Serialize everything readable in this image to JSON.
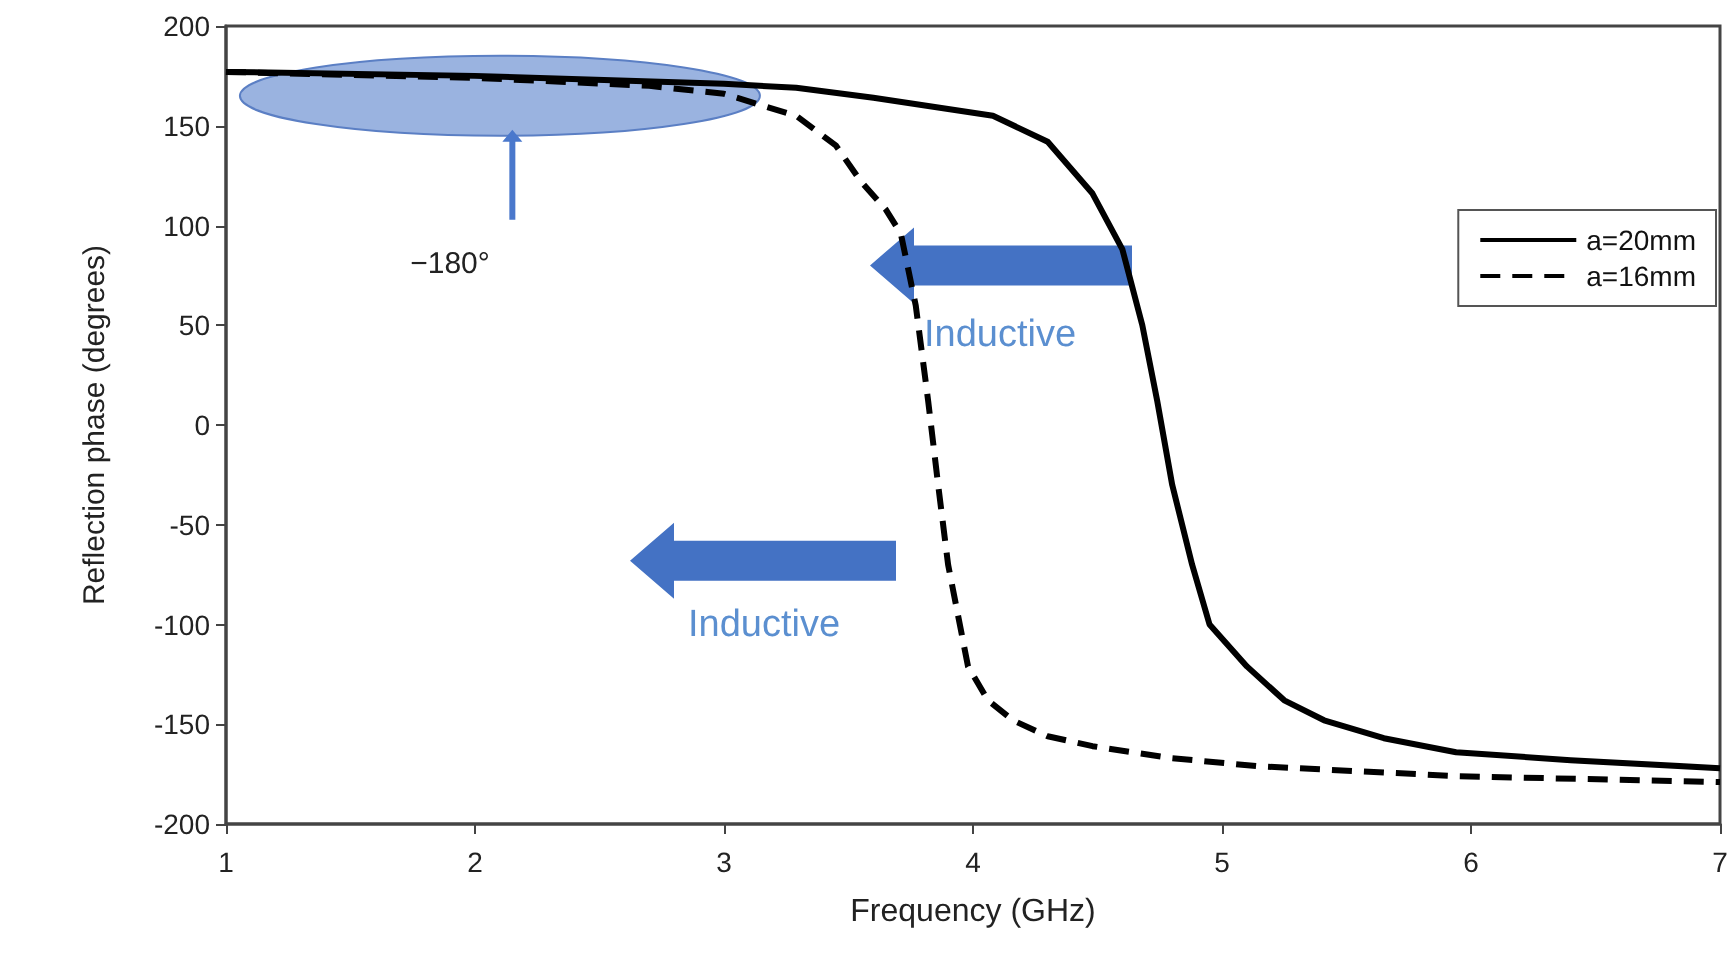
{
  "chart_data": {
    "type": "line",
    "xlabel": "Frequency (GHz)",
    "ylabel": "Reflection phase (degrees)",
    "xlim": [
      1,
      7
    ],
    "xticks": [
      1,
      2,
      3,
      4,
      5,
      6,
      7
    ],
    "ylim": [
      -200,
      200
    ],
    "yticks": [
      -200,
      -150,
      -100,
      -50,
      0,
      50,
      100,
      150,
      200
    ],
    "grid": false,
    "legend": "top right",
    "marker": "none",
    "series": [
      {
        "name": "a=20mm",
        "color": "#000000",
        "line_style": "solid",
        "x": [
          1,
          2,
          3,
          3.29,
          3.6,
          4.08,
          4.3,
          4.48,
          4.6,
          4.68,
          4.74,
          4.8,
          4.88,
          4.95,
          5.1,
          5.25,
          5.41,
          5.65,
          5.94,
          6.4,
          7
        ],
        "values": [
          177,
          175,
          171,
          169,
          164,
          155,
          142,
          116,
          88,
          50,
          12,
          -30,
          -70,
          -100,
          -121,
          -138,
          -148,
          -157,
          -164,
          -168,
          -172
        ]
      },
      {
        "name": "a=16mm",
        "color": "#000000",
        "line_style": "dashed",
        "x": [
          1,
          2,
          2.7,
          3,
          3.29,
          3.45,
          3.55,
          3.65,
          3.71,
          3.77,
          3.82,
          3.86,
          3.9,
          3.98,
          4.06,
          4.16,
          4.3,
          4.48,
          4.8,
          5.14,
          5.94,
          7
        ],
        "values": [
          177,
          174,
          170,
          166,
          155,
          140,
          122,
          108,
          96,
          60,
          12,
          -30,
          -70,
          -121,
          -138,
          -148,
          -156,
          -161,
          -167,
          -171,
          -176,
          -179
        ]
      }
    ],
    "annotations": [
      "−180°",
      "Inductive",
      "Inductive"
    ]
  }
}
